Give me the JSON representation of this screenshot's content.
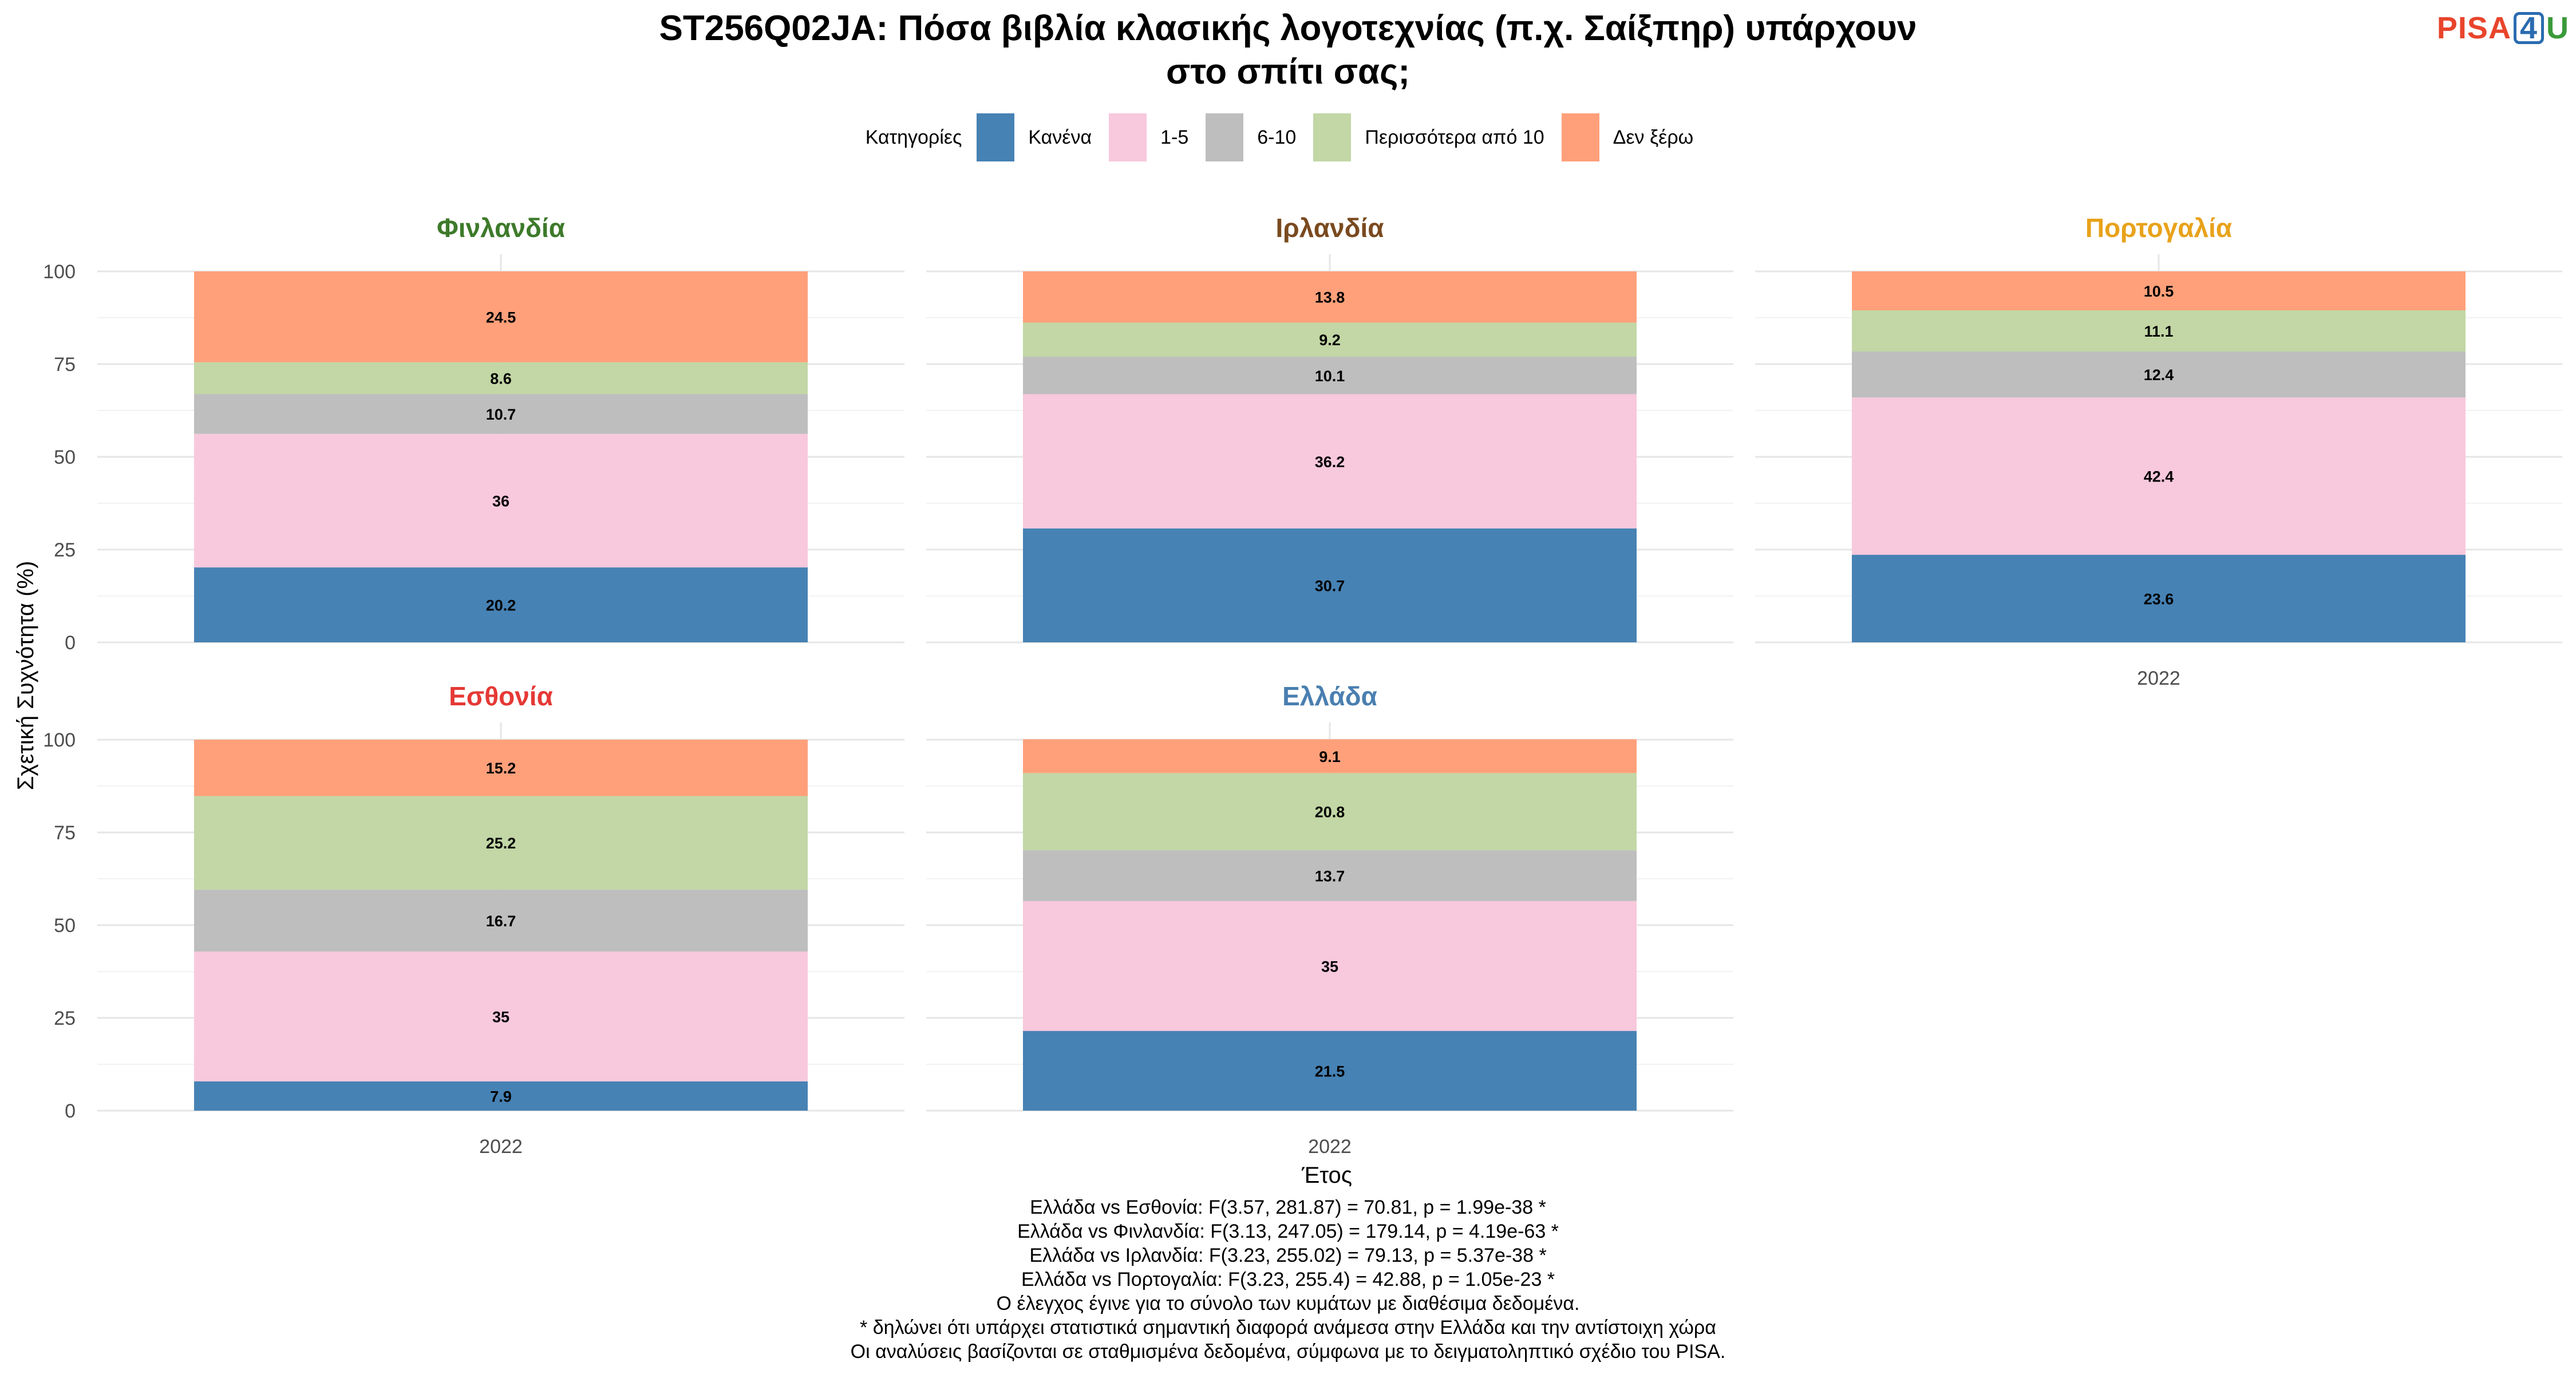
{
  "title": "ST256Q02JA: Πόσα βιβλία κλασικής λογοτεχνίας (π.χ. Σαίξπηρ) υπάρχουν",
  "title_line2": "στο σπίτι σας;",
  "logo": {
    "part1": "PISA",
    "part2": "4",
    "part3": "U"
  },
  "chart_data": {
    "type": "bar",
    "stacked": true,
    "ylabel": "Σχετική Συχνότητα (%)",
    "xlabel": "Έτος",
    "ylim": [
      0,
      100
    ],
    "yticks": [
      0,
      25,
      50,
      75,
      100
    ],
    "categories": [
      "2022"
    ],
    "legend": {
      "title": "Κατηγορίες",
      "placement": "top",
      "items": [
        {
          "name": "Κανένα",
          "color": "#4682b4"
        },
        {
          "name": "1-5",
          "color": "#f8c8dc"
        },
        {
          "name": "6-10",
          "color": "#bebebe"
        },
        {
          "name": "Περισσότερα από 10",
          "color": "#c2d7a5"
        },
        {
          "name": "Δεν ξέρω",
          "color": "#ffa07a"
        }
      ]
    },
    "panels": [
      {
        "country": "Φινλανδία",
        "color": "#3d7a2a",
        "values": [
          20.2,
          36,
          10.7,
          8.6,
          24.5
        ],
        "labels": [
          "20.2",
          "36",
          "10.7",
          "8.6",
          "24.5"
        ]
      },
      {
        "country": "Ιρλανδία",
        "color": "#7a4a1f",
        "values": [
          30.7,
          36.2,
          10.1,
          9.2,
          13.8
        ],
        "labels": [
          "30.7",
          "36.2",
          "10.1",
          "9.2",
          "13.8"
        ]
      },
      {
        "country": "Πορτογαλία",
        "color": "#e8a21a",
        "values": [
          23.6,
          42.4,
          12.4,
          11.1,
          10.5
        ],
        "labels": [
          "23.6",
          "42.4",
          "12.4",
          "11.1",
          "10.5"
        ]
      },
      {
        "country": "Εσθονία",
        "color": "#e53935",
        "values": [
          7.9,
          35,
          16.7,
          25.2,
          15.2
        ],
        "labels": [
          "7.9",
          "35",
          "16.7",
          "25.2",
          "15.2"
        ]
      },
      {
        "country": "Ελλάδα",
        "color": "#4a7fb0",
        "values": [
          21.5,
          35,
          13.7,
          20.8,
          9.1
        ],
        "labels": [
          "21.5",
          "35",
          "13.7",
          "20.8",
          "9.1"
        ]
      }
    ]
  },
  "footnotes": [
    "Ελλάδα vs Εσθονία: F(3.57, 281.87) = 70.81, p = 1.99e-38 *",
    "Ελλάδα vs Φινλανδία: F(3.13, 247.05) = 179.14, p = 4.19e-63 *",
    "Ελλάδα vs Ιρλανδία: F(3.23, 255.02) = 79.13, p = 5.37e-38 *",
    "Ελλάδα vs Πορτογαλία: F(3.23, 255.4) = 42.88, p = 1.05e-23 *",
    "Ο έλεγχος έγινε για το σύνολο των κυμάτων με διαθέσιμα δεδομένα.",
    "* δηλώνει ότι υπάρχει στατιστικά σημαντική διαφορά ανάμεσα στην Ελλάδα και την αντίστοιχη χώρα",
    "Οι αναλύσεις βασίζονται σε σταθμισμένα δεδομένα, σύμφωνα με το δειγματοληπτικό σχέδιο του PISA."
  ]
}
